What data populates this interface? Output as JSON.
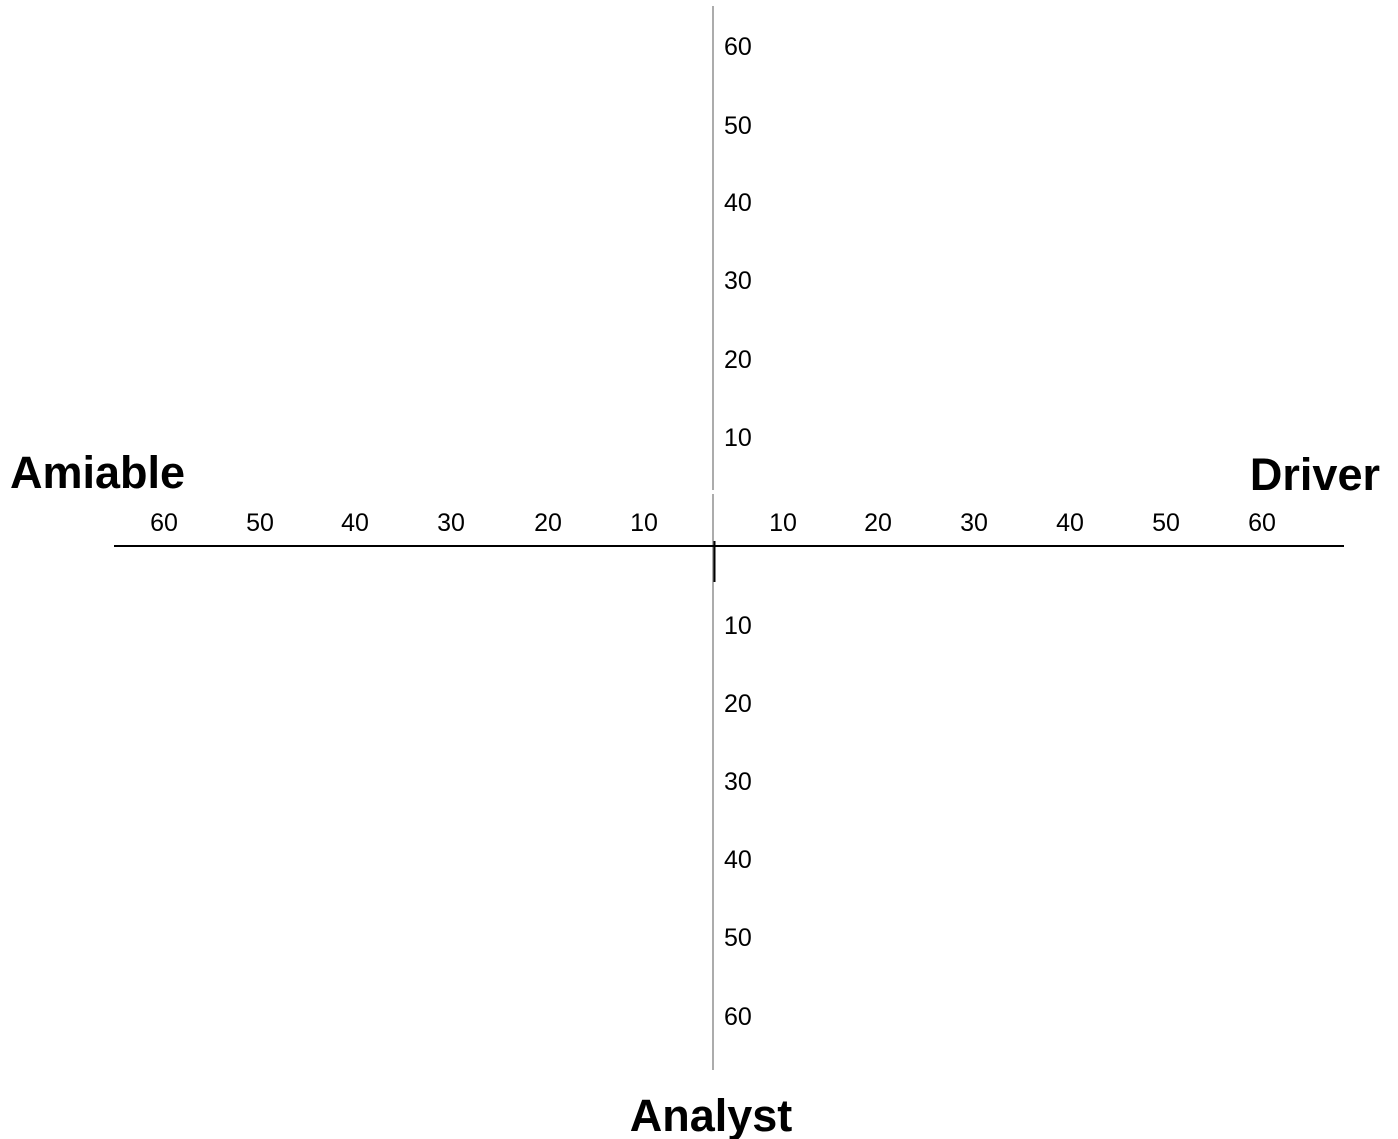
{
  "labels": {
    "left": "Amiable",
    "right": "Driver",
    "bottom": "Analyst",
    "top": ""
  },
  "axes": {
    "left_ticks": [
      "60",
      "50",
      "40",
      "30",
      "20",
      "10"
    ],
    "right_ticks": [
      "10",
      "20",
      "30",
      "40",
      "50",
      "60"
    ],
    "up_ticks": [
      "60",
      "50",
      "40",
      "30",
      "20",
      "10"
    ],
    "down_ticks": [
      "10",
      "20",
      "30",
      "40",
      "50",
      "60"
    ]
  },
  "colors": {
    "horizontal_axis": "#000000",
    "vertical_axis": "#808080",
    "text": "#000000"
  }
}
